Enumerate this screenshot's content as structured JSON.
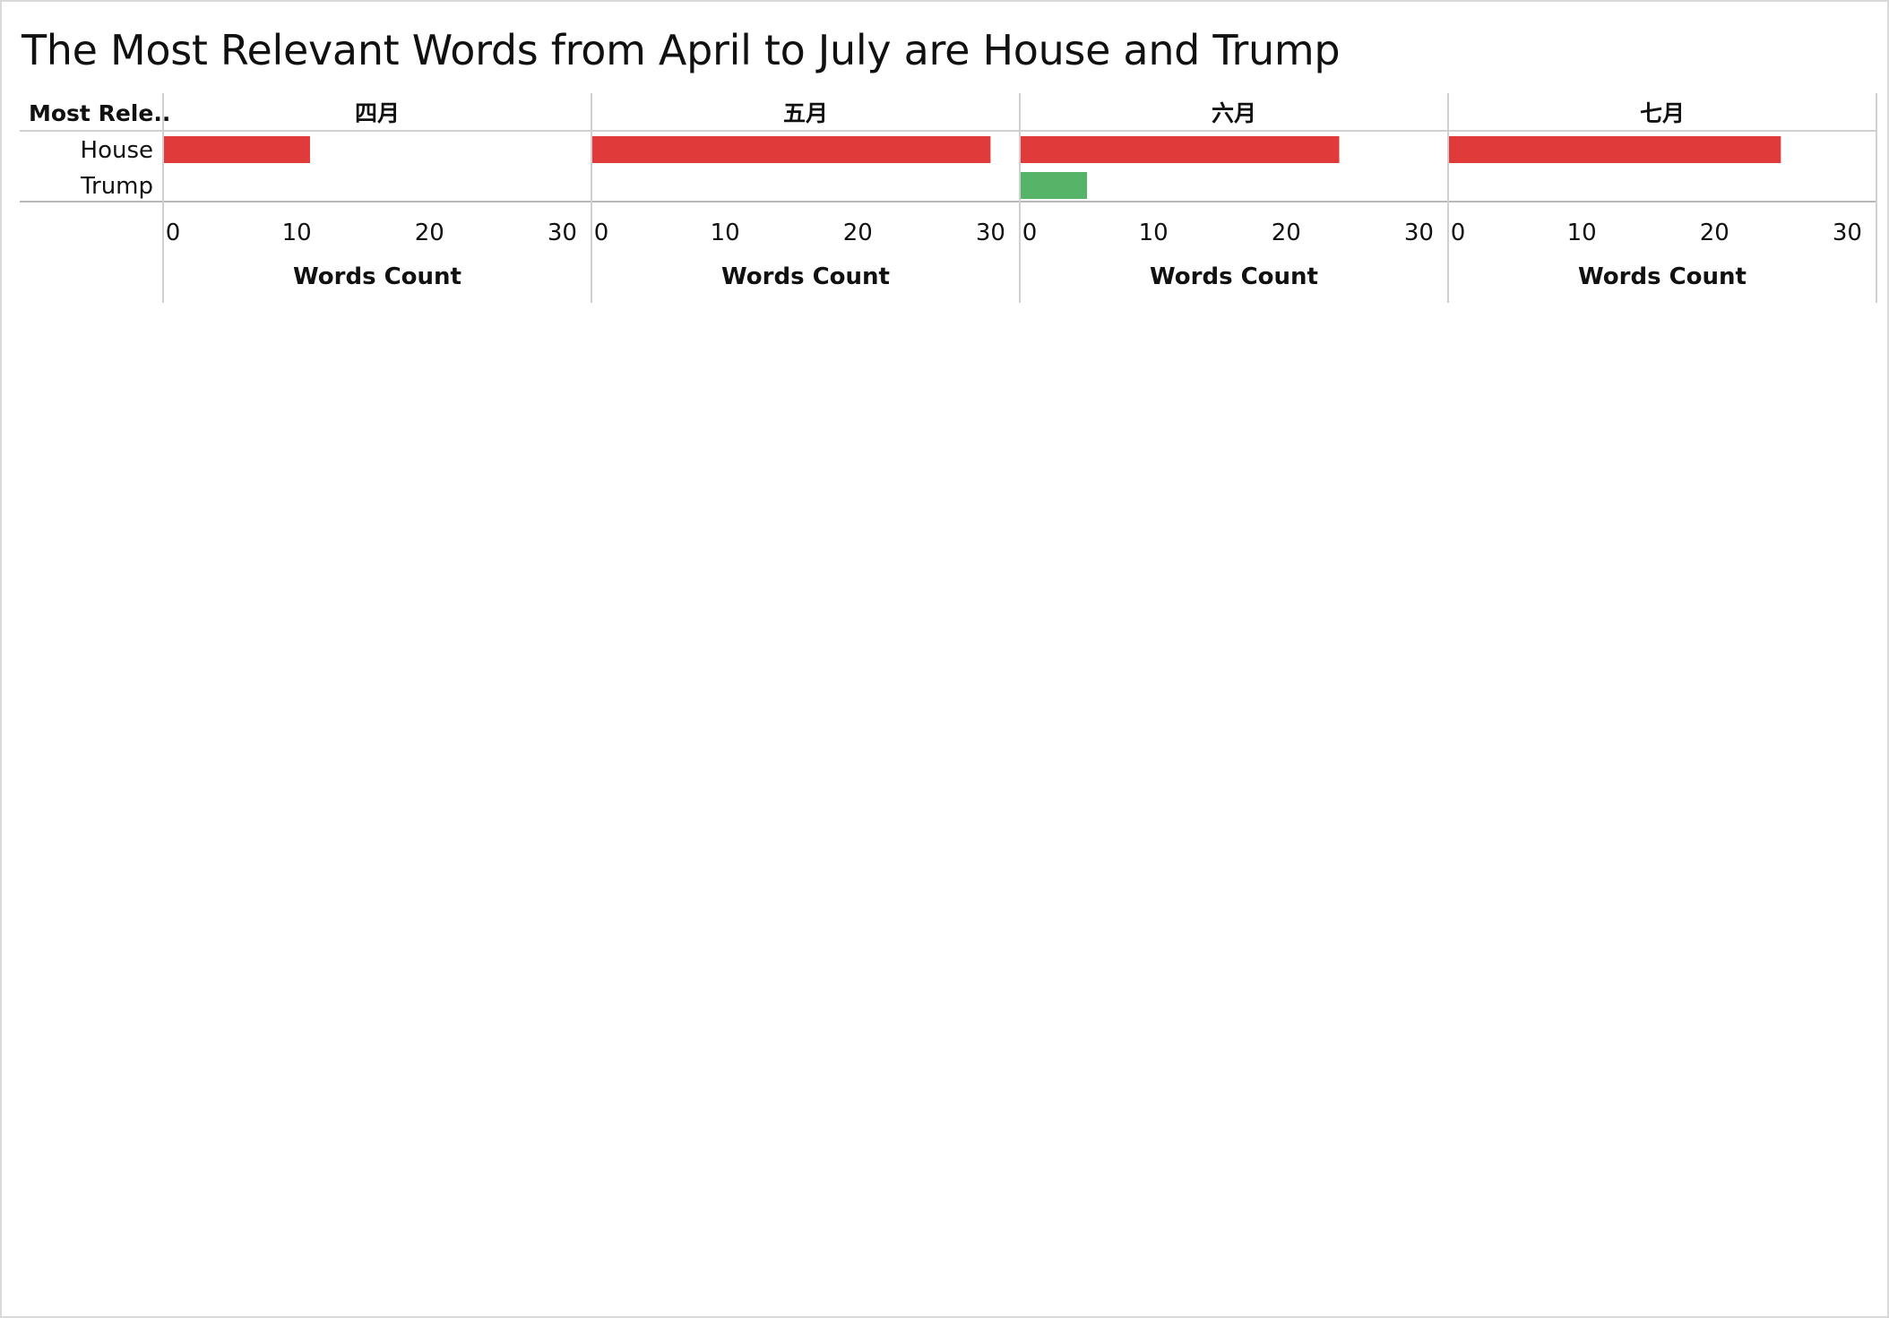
{
  "title": "The Most Relevant Words from April to July are House and Trump",
  "colors": {
    "house": "#e03a3a",
    "trump": "#56b468",
    "grid": "#d0d0d0",
    "text": "#111111"
  },
  "chart_data": {
    "type": "bar",
    "title": "The Most Relevant Words from April to July are House and Trump",
    "row_header": "Most Rele..",
    "rows": [
      "House",
      "Trump"
    ],
    "panels": [
      "四月",
      "五月",
      "六月",
      "七月"
    ],
    "series": [
      {
        "name": "四月",
        "values": [
          {
            "word": "House",
            "value": 11,
            "color": "#e03a3a"
          }
        ]
      },
      {
        "name": "五月",
        "values": [
          {
            "word": "House",
            "value": 30,
            "color": "#e03a3a"
          }
        ]
      },
      {
        "name": "六月",
        "values": [
          {
            "word": "House",
            "value": 24,
            "color": "#e03a3a"
          },
          {
            "word": "Trump",
            "value": 5,
            "color": "#56b468"
          }
        ]
      },
      {
        "name": "七月",
        "values": [
          {
            "word": "House",
            "value": 25,
            "color": "#e03a3a"
          }
        ]
      }
    ],
    "xlabel": "Words Count",
    "xlim": [
      0,
      32
    ],
    "xticks": [
      0,
      10,
      20,
      30
    ],
    "grid": false,
    "legend": "none"
  }
}
